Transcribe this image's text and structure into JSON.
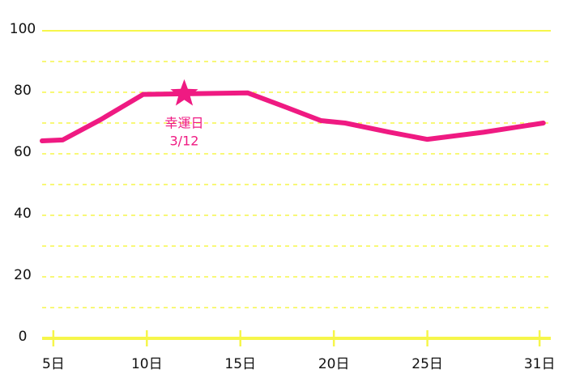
{
  "chart_data": {
    "type": "line",
    "x": [
      4.4,
      5.5,
      7.5,
      9.8,
      12,
      15.4,
      17.5,
      19.3,
      20.6,
      23,
      25,
      28,
      31.2
    ],
    "series": [
      {
        "color": "#ef1a82",
        "values": [
          64.2,
          64.5,
          71,
          79.3,
          79.5,
          79.8,
          75,
          70.8,
          70,
          67,
          64.7,
          67,
          70
        ]
      }
    ],
    "xlim": [
      4.4,
      31.6
    ],
    "ylim": [
      0,
      100
    ],
    "xticks": [
      {
        "value": 5,
        "label": "5日"
      },
      {
        "value": 10,
        "label": "10日"
      },
      {
        "value": 15,
        "label": "15日"
      },
      {
        "value": 20,
        "label": "20日"
      },
      {
        "value": 25,
        "label": "25日"
      },
      {
        "value": 31,
        "label": "31日"
      }
    ],
    "yticks": [
      0,
      20,
      40,
      60,
      80,
      100
    ],
    "minor_yticks": [
      10,
      30,
      50,
      70,
      90
    ],
    "grid": true,
    "grid_color": "#f6f64a",
    "annotation": {
      "x": 12,
      "y": 79.5,
      "lines": [
        "幸運日",
        "3/12"
      ],
      "color": "#ef1a82"
    }
  }
}
